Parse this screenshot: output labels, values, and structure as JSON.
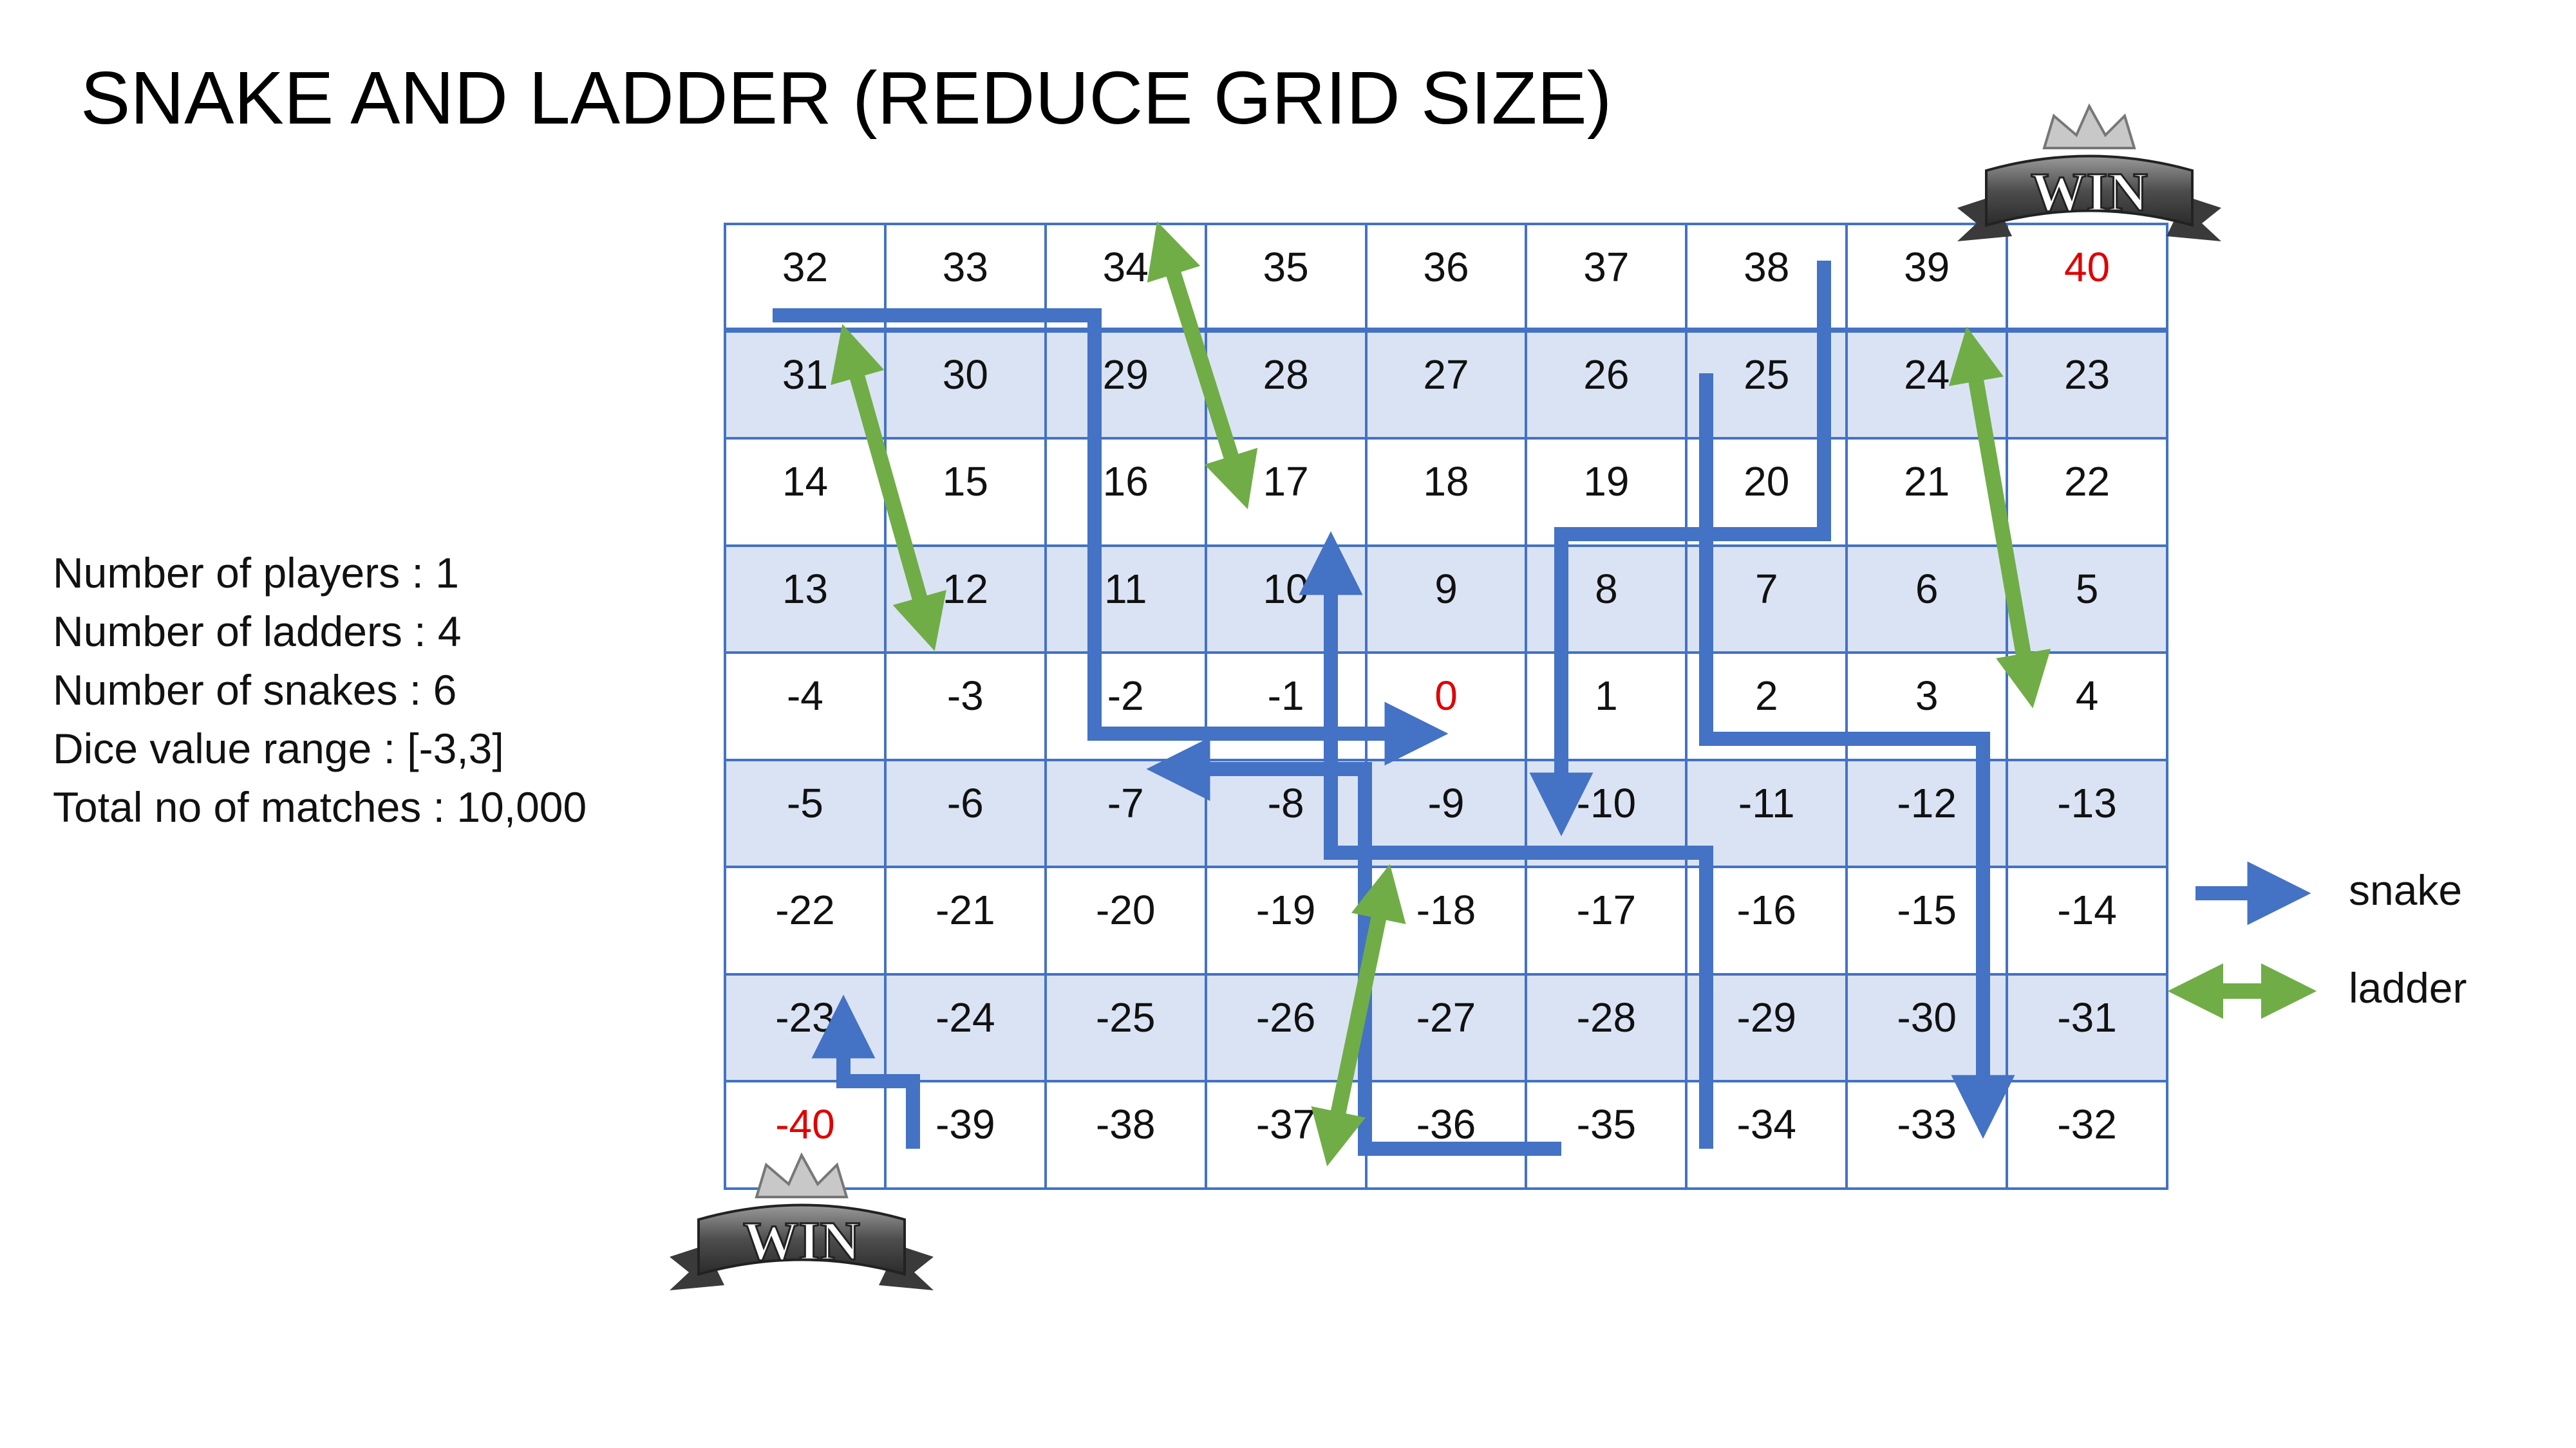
{
  "title": "SNAKE AND LADDER (REDUCE GRID SIZE)",
  "info": [
    "Number of players  : 1",
    "Number of ladders  : 4",
    "Number of snakes   : 6",
    "Dice value range : [-3,3]",
    "Total no of matches : 10,000"
  ],
  "board": {
    "rows": [
      [
        "32",
        "33",
        "34",
        "35",
        "36",
        "37",
        "38",
        "39",
        "40"
      ],
      [
        "31",
        "30",
        "29",
        "28",
        "27",
        "26",
        "25",
        "24",
        "23"
      ],
      [
        "14",
        "15",
        "16",
        "17",
        "18",
        "19",
        "20",
        "21",
        "22"
      ],
      [
        "13",
        "12",
        "11",
        "10",
        "9",
        "8",
        "7",
        "6",
        "5"
      ],
      [
        "-4",
        "-3",
        "-2",
        "-1",
        "0",
        "1",
        "2",
        "3",
        "4"
      ],
      [
        "-5",
        "-6",
        "-7",
        "-8",
        "-9",
        "-10",
        "-11",
        "-12",
        "-13"
      ],
      [
        "-22",
        "-21",
        "-20",
        "-19",
        "-18",
        "-17",
        "-16",
        "-15",
        "-14"
      ],
      [
        "-23",
        "-24",
        "-25",
        "-26",
        "-27",
        "-28",
        "-29",
        "-30",
        "-31"
      ],
      [
        "-40",
        "-39",
        "-38",
        "-37",
        "-36",
        "-35",
        "-34",
        "-33",
        "-32"
      ]
    ],
    "highlight_red": [
      "40",
      "0",
      "-40"
    ]
  },
  "win_badge": {
    "text": "WIN"
  },
  "legend": {
    "snake": "snake",
    "ladder": "ladder"
  },
  "colors": {
    "snake": "#4472c4",
    "ladder": "#70ad47",
    "highlight": "#e00000",
    "shade": "#dae3f3"
  }
}
